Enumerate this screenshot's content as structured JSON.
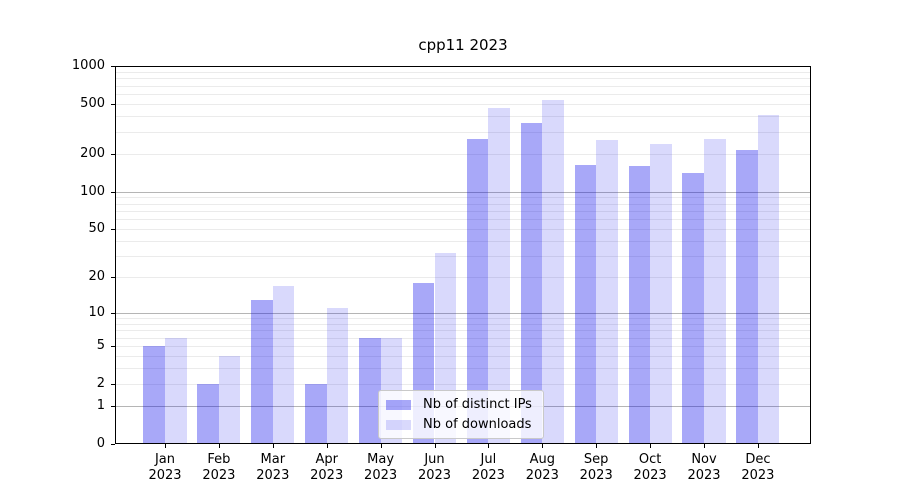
{
  "title": "cpp11 2023",
  "chart_data": {
    "type": "bar",
    "title": "cpp11 2023",
    "months": [
      "Jan",
      "Feb",
      "Mar",
      "Apr",
      "May",
      "Jun",
      "Jul",
      "Aug",
      "Sep",
      "Oct",
      "Nov",
      "Dec"
    ],
    "x_tick_year": "2023",
    "categories": [
      "Jan 2023",
      "Feb 2023",
      "Mar 2023",
      "Apr 2023",
      "May 2023",
      "Jun 2023",
      "Jul 2023",
      "Aug 2023",
      "Sep 2023",
      "Oct 2023",
      "Nov 2023",
      "Dec 2023"
    ],
    "series": [
      {
        "name": "Nb of distinct IPs",
        "color": "rgba(0,0,235,0.34)",
        "values": [
          5,
          2,
          13,
          2,
          6,
          18,
          265,
          350,
          163,
          160,
          142,
          213
        ]
      },
      {
        "name": "Nb of downloads",
        "color": "rgba(0,0,235,0.15)",
        "values": [
          6,
          4,
          17,
          11,
          6,
          32,
          465,
          540,
          258,
          240,
          262,
          410
        ]
      }
    ],
    "yscale": "log1p",
    "ylim": [
      0,
      1000
    ],
    "yticks": [
      0,
      1,
      2,
      5,
      10,
      20,
      50,
      100,
      200,
      500,
      1000
    ],
    "grid": "on",
    "legend_position": "lower center",
    "colors": {
      "major_grid": "#b5b5b5",
      "minor_grid": "#ebebeb",
      "axis": "#000000",
      "background": "#ffffff"
    }
  }
}
